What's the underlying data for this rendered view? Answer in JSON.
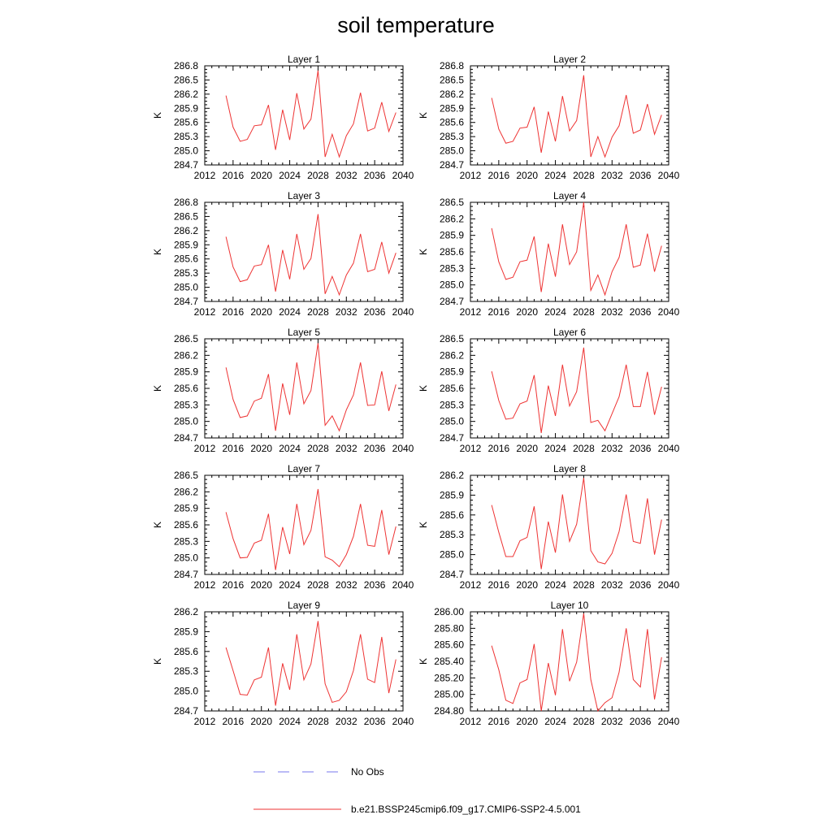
{
  "title": "soil temperature",
  "legend": {
    "placement": "bottom",
    "items": [
      {
        "label": "No Obs",
        "color": "#7777ee",
        "style": "dashed"
      },
      {
        "label": "b.e21.BSSP245cmip6.f09_g17.CMIP6-SSP2-4.5.001",
        "color": "#ee3333",
        "style": "solid"
      }
    ]
  },
  "chart_data": [
    {
      "type": "line",
      "title": "Layer 1",
      "ylabel": "K",
      "xlim": [
        2012,
        2040
      ],
      "xticks": [
        2012,
        2016,
        2020,
        2024,
        2028,
        2032,
        2036,
        2040
      ],
      "ylim": [
        284.7,
        286.8
      ],
      "yticks": [
        "284.7",
        "285.0",
        "285.3",
        "285.6",
        "285.9",
        "286.2",
        "286.5",
        "286.8"
      ],
      "x": [
        2015,
        2016,
        2017,
        2018,
        2019,
        2020,
        2021,
        2022,
        2023,
        2024,
        2025,
        2026,
        2027,
        2028,
        2029,
        2030,
        2031,
        2032,
        2033,
        2034,
        2035,
        2036,
        2037,
        2038,
        2039
      ],
      "series": [
        {
          "values": [
            286.17,
            285.5,
            285.2,
            285.24,
            285.53,
            285.55,
            285.97,
            285.02,
            285.87,
            285.23,
            286.22,
            285.46,
            285.67,
            286.7,
            284.87,
            285.35,
            284.87,
            285.32,
            285.57,
            286.23,
            285.42,
            285.48,
            286.03,
            285.41,
            285.81
          ]
        }
      ]
    },
    {
      "type": "line",
      "title": "Layer 2",
      "ylabel": "K",
      "xlim": [
        2012,
        2040
      ],
      "xticks": [
        2012,
        2016,
        2020,
        2024,
        2028,
        2032,
        2036,
        2040
      ],
      "ylim": [
        284.7,
        286.8
      ],
      "yticks": [
        "284.7",
        "285.0",
        "285.3",
        "285.6",
        "285.9",
        "286.2",
        "286.5",
        "286.8"
      ],
      "x": [
        2015,
        2016,
        2017,
        2018,
        2019,
        2020,
        2021,
        2022,
        2023,
        2024,
        2025,
        2026,
        2027,
        2028,
        2029,
        2030,
        2031,
        2032,
        2033,
        2034,
        2035,
        2036,
        2037,
        2038,
        2039
      ],
      "series": [
        {
          "values": [
            286.12,
            285.46,
            285.16,
            285.2,
            285.48,
            285.5,
            285.93,
            284.96,
            285.83,
            285.2,
            286.16,
            285.42,
            285.64,
            286.6,
            284.87,
            285.3,
            284.87,
            285.29,
            285.53,
            286.18,
            285.37,
            285.44,
            285.99,
            285.35,
            285.76
          ]
        }
      ]
    },
    {
      "type": "line",
      "title": "Layer 3",
      "ylabel": "K",
      "xlim": [
        2012,
        2040
      ],
      "xticks": [
        2012,
        2016,
        2020,
        2024,
        2028,
        2032,
        2036,
        2040
      ],
      "ylim": [
        284.7,
        286.8
      ],
      "yticks": [
        "284.7",
        "285.0",
        "285.3",
        "285.6",
        "285.9",
        "286.2",
        "286.5",
        "286.8"
      ],
      "x": [
        2015,
        2016,
        2017,
        2018,
        2019,
        2020,
        2021,
        2022,
        2023,
        2024,
        2025,
        2026,
        2027,
        2028,
        2029,
        2030,
        2031,
        2032,
        2033,
        2034,
        2035,
        2036,
        2037,
        2038,
        2039
      ],
      "series": [
        {
          "values": [
            286.07,
            285.43,
            285.12,
            285.16,
            285.45,
            285.48,
            285.9,
            284.91,
            285.79,
            285.17,
            286.13,
            285.38,
            285.61,
            286.55,
            284.86,
            285.23,
            284.84,
            285.26,
            285.51,
            286.13,
            285.33,
            285.38,
            285.96,
            285.3,
            285.73
          ]
        }
      ]
    },
    {
      "type": "line",
      "title": "Layer 4",
      "ylabel": "K",
      "xlim": [
        2012,
        2040
      ],
      "xticks": [
        2012,
        2016,
        2020,
        2024,
        2028,
        2032,
        2036,
        2040
      ],
      "ylim": [
        284.7,
        286.5
      ],
      "yticks": [
        "284.7",
        "285.0",
        "285.3",
        "285.6",
        "285.9",
        "286.2",
        "286.5"
      ],
      "x": [
        2015,
        2016,
        2017,
        2018,
        2019,
        2020,
        2021,
        2022,
        2023,
        2024,
        2025,
        2026,
        2027,
        2028,
        2029,
        2030,
        2031,
        2032,
        2033,
        2034,
        2035,
        2036,
        2037,
        2038,
        2039
      ],
      "series": [
        {
          "values": [
            286.03,
            285.42,
            285.1,
            285.14,
            285.42,
            285.45,
            285.88,
            284.87,
            285.75,
            285.15,
            286.1,
            285.37,
            285.6,
            286.5,
            284.9,
            285.18,
            284.82,
            285.24,
            285.5,
            286.1,
            285.32,
            285.36,
            285.93,
            285.24,
            285.71
          ]
        }
      ]
    },
    {
      "type": "line",
      "title": "Layer 5",
      "ylabel": "K",
      "xlim": [
        2012,
        2040
      ],
      "xticks": [
        2012,
        2016,
        2020,
        2024,
        2028,
        2032,
        2036,
        2040
      ],
      "ylim": [
        284.7,
        286.5
      ],
      "yticks": [
        "284.7",
        "285.0",
        "285.3",
        "285.6",
        "285.9",
        "286.2",
        "286.5"
      ],
      "x": [
        2015,
        2016,
        2017,
        2018,
        2019,
        2020,
        2021,
        2022,
        2023,
        2024,
        2025,
        2026,
        2027,
        2028,
        2029,
        2030,
        2031,
        2032,
        2033,
        2034,
        2035,
        2036,
        2037,
        2038,
        2039
      ],
      "series": [
        {
          "values": [
            285.98,
            285.4,
            285.07,
            285.1,
            285.37,
            285.42,
            285.86,
            284.83,
            285.69,
            285.12,
            286.07,
            285.32,
            285.56,
            286.42,
            284.93,
            285.1,
            284.83,
            285.21,
            285.48,
            286.07,
            285.29,
            285.3,
            285.91,
            285.19,
            285.67
          ]
        }
      ]
    },
    {
      "type": "line",
      "title": "Layer 6",
      "ylabel": "K",
      "xlim": [
        2012,
        2040
      ],
      "xticks": [
        2012,
        2016,
        2020,
        2024,
        2028,
        2032,
        2036,
        2040
      ],
      "ylim": [
        284.7,
        286.5
      ],
      "yticks": [
        "284.7",
        "285.0",
        "285.3",
        "285.6",
        "285.9",
        "286.2",
        "286.5"
      ],
      "x": [
        2015,
        2016,
        2017,
        2018,
        2019,
        2020,
        2021,
        2022,
        2023,
        2024,
        2025,
        2026,
        2027,
        2028,
        2029,
        2030,
        2031,
        2032,
        2033,
        2034,
        2035,
        2036,
        2037,
        2038,
        2039
      ],
      "series": [
        {
          "values": [
            285.91,
            285.38,
            285.04,
            285.06,
            285.32,
            285.37,
            285.84,
            284.79,
            285.65,
            285.1,
            286.03,
            285.28,
            285.54,
            286.34,
            284.98,
            285.02,
            284.83,
            285.14,
            285.45,
            286.03,
            285.27,
            285.27,
            285.9,
            285.12,
            285.63
          ]
        }
      ]
    },
    {
      "type": "line",
      "title": "Layer 7",
      "ylabel": "K",
      "xlim": [
        2012,
        2040
      ],
      "xticks": [
        2012,
        2016,
        2020,
        2024,
        2028,
        2032,
        2036,
        2040
      ],
      "ylim": [
        284.7,
        286.5
      ],
      "yticks": [
        "284.7",
        "285.0",
        "285.3",
        "285.6",
        "285.9",
        "286.2",
        "286.5"
      ],
      "x": [
        2015,
        2016,
        2017,
        2018,
        2019,
        2020,
        2021,
        2022,
        2023,
        2024,
        2025,
        2026,
        2027,
        2028,
        2029,
        2030,
        2031,
        2032,
        2033,
        2034,
        2035,
        2036,
        2037,
        2038,
        2039
      ],
      "series": [
        {
          "values": [
            285.83,
            285.35,
            285.0,
            285.01,
            285.27,
            285.32,
            285.8,
            284.78,
            285.56,
            285.07,
            285.98,
            285.24,
            285.5,
            286.25,
            285.02,
            284.96,
            284.84,
            285.06,
            285.39,
            285.98,
            285.23,
            285.21,
            285.87,
            285.06,
            285.57
          ]
        }
      ]
    },
    {
      "type": "line",
      "title": "Layer 8",
      "ylabel": "K",
      "xlim": [
        2012,
        2040
      ],
      "xticks": [
        2012,
        2016,
        2020,
        2024,
        2028,
        2032,
        2036,
        2040
      ],
      "ylim": [
        284.7,
        286.2
      ],
      "yticks": [
        "284.7",
        "285.0",
        "285.3",
        "285.6",
        "285.9",
        "286.2"
      ],
      "x": [
        2015,
        2016,
        2017,
        2018,
        2019,
        2020,
        2021,
        2022,
        2023,
        2024,
        2025,
        2026,
        2027,
        2028,
        2029,
        2030,
        2031,
        2032,
        2033,
        2034,
        2035,
        2036,
        2037,
        2038,
        2039
      ],
      "series": [
        {
          "values": [
            285.75,
            285.34,
            284.97,
            284.97,
            285.21,
            285.26,
            285.73,
            284.78,
            285.5,
            285.03,
            285.91,
            285.2,
            285.46,
            286.16,
            285.06,
            284.89,
            284.86,
            285.02,
            285.35,
            285.91,
            285.2,
            285.17,
            285.85,
            285.0,
            285.53
          ]
        }
      ]
    },
    {
      "type": "line",
      "title": "Layer 9",
      "ylabel": "K",
      "xlim": [
        2012,
        2040
      ],
      "xticks": [
        2012,
        2016,
        2020,
        2024,
        2028,
        2032,
        2036,
        2040
      ],
      "ylim": [
        284.7,
        286.2
      ],
      "yticks": [
        "284.7",
        "285.0",
        "285.3",
        "285.6",
        "285.9",
        "286.2"
      ],
      "x": [
        2015,
        2016,
        2017,
        2018,
        2019,
        2020,
        2021,
        2022,
        2023,
        2024,
        2025,
        2026,
        2027,
        2028,
        2029,
        2030,
        2031,
        2032,
        2033,
        2034,
        2035,
        2036,
        2037,
        2038,
        2039
      ],
      "series": [
        {
          "values": [
            285.66,
            285.31,
            284.95,
            284.94,
            285.17,
            285.21,
            285.66,
            284.78,
            285.42,
            285.02,
            285.86,
            285.17,
            285.41,
            286.06,
            285.11,
            284.83,
            284.86,
            284.99,
            285.31,
            285.86,
            285.18,
            285.13,
            285.82,
            284.97,
            285.48
          ]
        }
      ]
    },
    {
      "type": "line",
      "title": "Layer 10",
      "ylabel": "K",
      "xlim": [
        2012,
        2040
      ],
      "xticks": [
        2012,
        2016,
        2020,
        2024,
        2028,
        2032,
        2036,
        2040
      ],
      "ylim": [
        284.8,
        286.0
      ],
      "yticks": [
        "284.80",
        "285.00",
        "285.20",
        "285.40",
        "285.60",
        "285.80",
        "286.00"
      ],
      "x": [
        2015,
        2016,
        2017,
        2018,
        2019,
        2020,
        2021,
        2022,
        2023,
        2024,
        2025,
        2026,
        2027,
        2028,
        2029,
        2030,
        2031,
        2032,
        2033,
        2034,
        2035,
        2036,
        2037,
        2038,
        2039
      ],
      "series": [
        {
          "values": [
            285.59,
            285.3,
            284.93,
            284.89,
            285.14,
            285.18,
            285.61,
            284.8,
            285.38,
            284.99,
            285.79,
            285.16,
            285.39,
            285.98,
            285.18,
            284.8,
            284.9,
            284.96,
            285.27,
            285.8,
            285.18,
            285.09,
            285.79,
            284.94,
            285.45
          ]
        }
      ]
    }
  ]
}
